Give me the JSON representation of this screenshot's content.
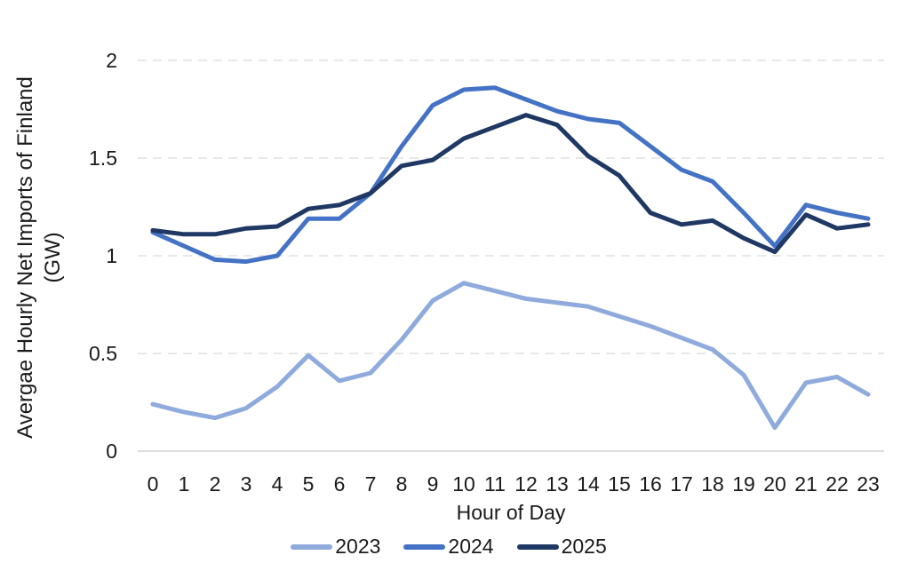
{
  "chart_data": {
    "type": "line",
    "title": "",
    "xlabel": "Hour of Day",
    "ylabel_line1": "Avergae Hourly Net Imports of Finland",
    "ylabel_line2": "(GW)",
    "x": [
      0,
      1,
      2,
      3,
      4,
      5,
      6,
      7,
      8,
      9,
      10,
      11,
      12,
      13,
      14,
      15,
      16,
      17,
      18,
      19,
      20,
      21,
      22,
      23
    ],
    "xtick_labels": [
      "0",
      "1",
      "2",
      "3",
      "4",
      "5",
      "6",
      "7",
      "8",
      "9",
      "10",
      "11",
      "12",
      "13",
      "14",
      "15",
      "16",
      "17",
      "18",
      "19",
      "20",
      "21",
      "22",
      "23"
    ],
    "ylim": [
      0,
      2
    ],
    "yticks": [
      0,
      0.5,
      1,
      1.5,
      2
    ],
    "ytick_labels": [
      "0",
      "0.5",
      "1",
      "1.5",
      "2"
    ],
    "grid": "horizontal-dashed",
    "legend_position": "bottom-center",
    "series": [
      {
        "name": "2023",
        "color": "#8FAADC",
        "values": [
          0.24,
          0.2,
          0.17,
          0.22,
          0.33,
          0.49,
          0.36,
          0.4,
          0.57,
          0.77,
          0.86,
          0.82,
          0.78,
          0.76,
          0.74,
          0.69,
          0.64,
          0.58,
          0.52,
          0.39,
          0.12,
          0.35,
          0.38,
          0.29
        ]
      },
      {
        "name": "2024",
        "color": "#4472C4",
        "values": [
          1.12,
          1.05,
          0.98,
          0.97,
          1.0,
          1.19,
          1.19,
          1.32,
          1.56,
          1.77,
          1.85,
          1.86,
          1.8,
          1.74,
          1.7,
          1.68,
          1.56,
          1.44,
          1.38,
          1.22,
          1.05,
          1.26,
          1.22,
          1.19
        ]
      },
      {
        "name": "2025",
        "color": "#1F3864",
        "values": [
          1.13,
          1.11,
          1.11,
          1.14,
          1.15,
          1.24,
          1.26,
          1.32,
          1.46,
          1.49,
          1.6,
          1.66,
          1.72,
          1.67,
          1.51,
          1.41,
          1.22,
          1.16,
          1.18,
          1.09,
          1.02,
          1.21,
          1.14,
          1.16
        ]
      }
    ],
    "colors": {
      "gridline": "#D9D9D9",
      "axis_line": "#D2D2D2",
      "text": "#1A1A1A",
      "background": "#FFFFFF"
    }
  }
}
